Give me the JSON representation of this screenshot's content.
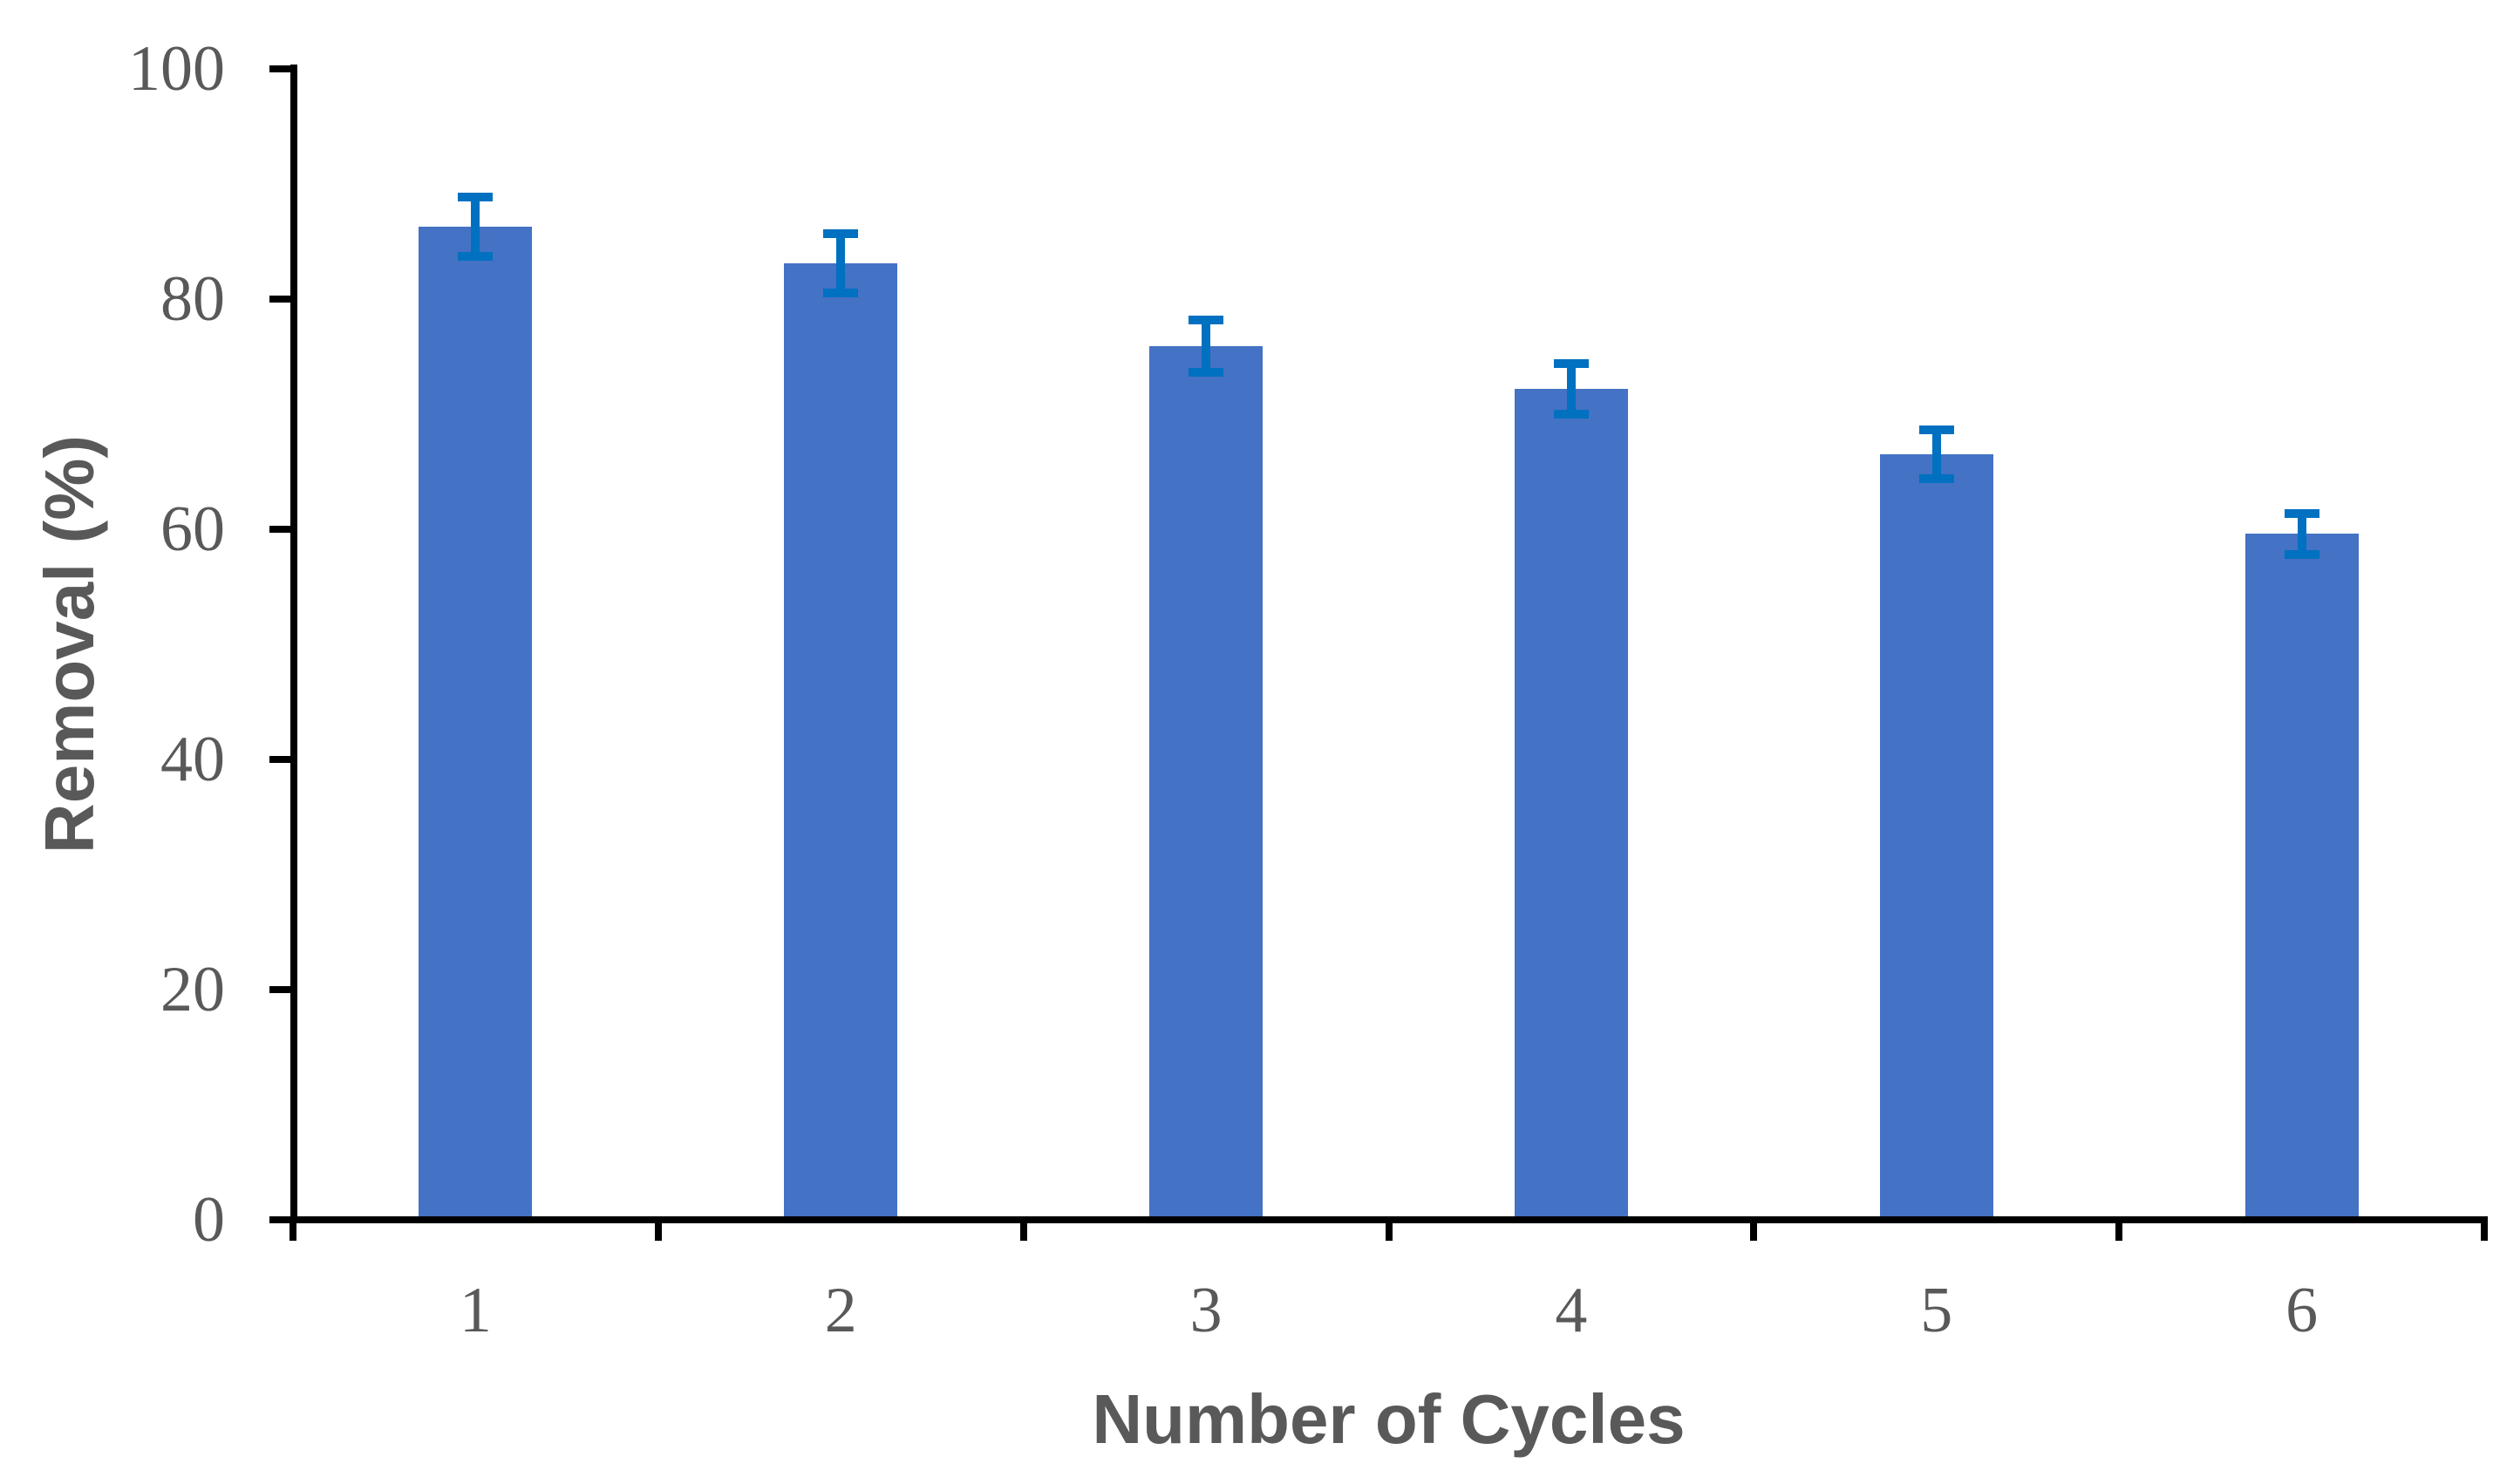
{
  "figure": {
    "background": "#FFFFFF"
  },
  "chart_data": {
    "type": "bar",
    "title": "",
    "categories": [
      "1",
      "2",
      "3",
      "4",
      "5",
      "6"
    ],
    "values": [
      86.3,
      83.1,
      75.9,
      72.2,
      66.5,
      59.6
    ],
    "error_bars": [
      2.6,
      2.6,
      2.3,
      2.2,
      2.1,
      1.8
    ],
    "xlabel": "Number of Cycles",
    "ylabel": "Removal (%)",
    "ylim": [
      0,
      100
    ],
    "yticks": [
      0,
      20,
      40,
      60,
      80,
      100
    ],
    "grid": false,
    "legend": false,
    "bar_color": "#4472C4",
    "error_bar_color": "#0070C0",
    "axis_color": "#000000",
    "tick_label_color": "#595959",
    "axis_title_color": "#595959"
  }
}
